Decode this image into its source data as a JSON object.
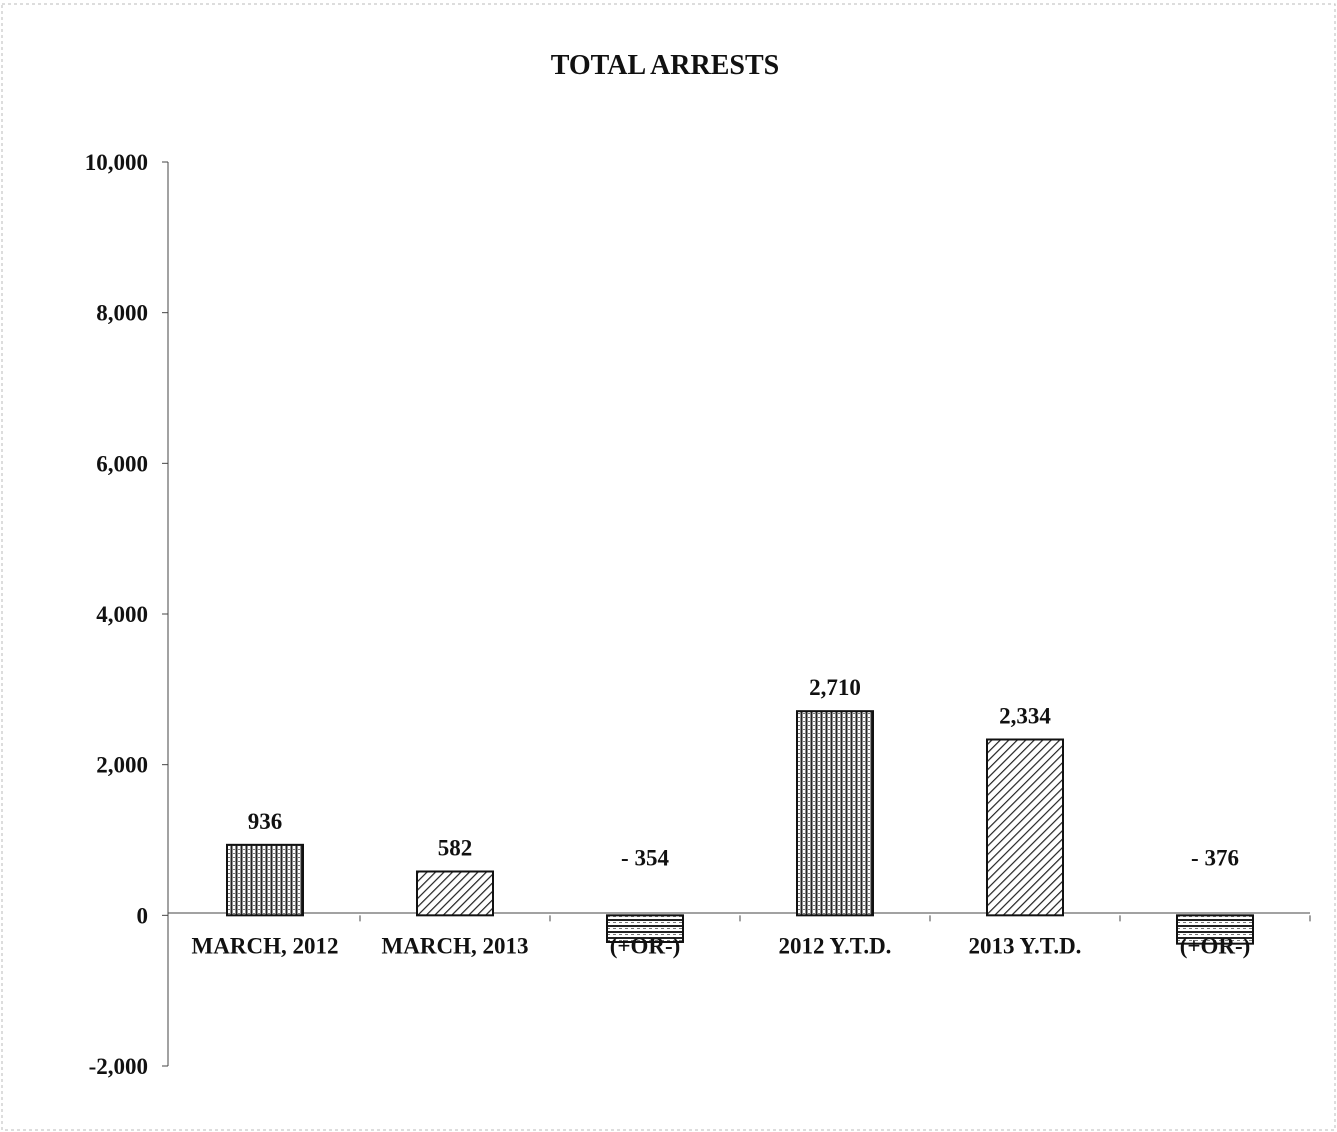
{
  "chart_data": {
    "type": "bar",
    "title": "TOTAL ARRESTS",
    "xlabel": "",
    "ylabel": "",
    "categories": [
      "MARCH, 2012",
      "MARCH, 2013",
      "(+OR-)",
      "2012 Y.T.D.",
      "2013 Y.T.D.",
      "(+OR-)"
    ],
    "values": [
      936,
      582,
      -354,
      2710,
      2334,
      -376
    ],
    "value_labels": [
      "936",
      "582",
      "- 354",
      "2,710",
      "2,334",
      "- 376"
    ],
    "patterns": [
      "vertical",
      "diagonal",
      "horizontal",
      "vertical",
      "diagonal",
      "horizontal"
    ],
    "ylim": [
      -2000,
      10000
    ],
    "yticks": [
      -2000,
      0,
      2000,
      4000,
      6000,
      8000,
      10000
    ],
    "ytick_labels": [
      "-2,000",
      "0",
      "2,000",
      "4,000",
      "6,000",
      "8,000",
      "10,000"
    ],
    "grid": false,
    "legend": "none",
    "colors": {
      "bar_fill": "#ffffff",
      "stroke": "#111111",
      "pattern": "#222222"
    }
  }
}
